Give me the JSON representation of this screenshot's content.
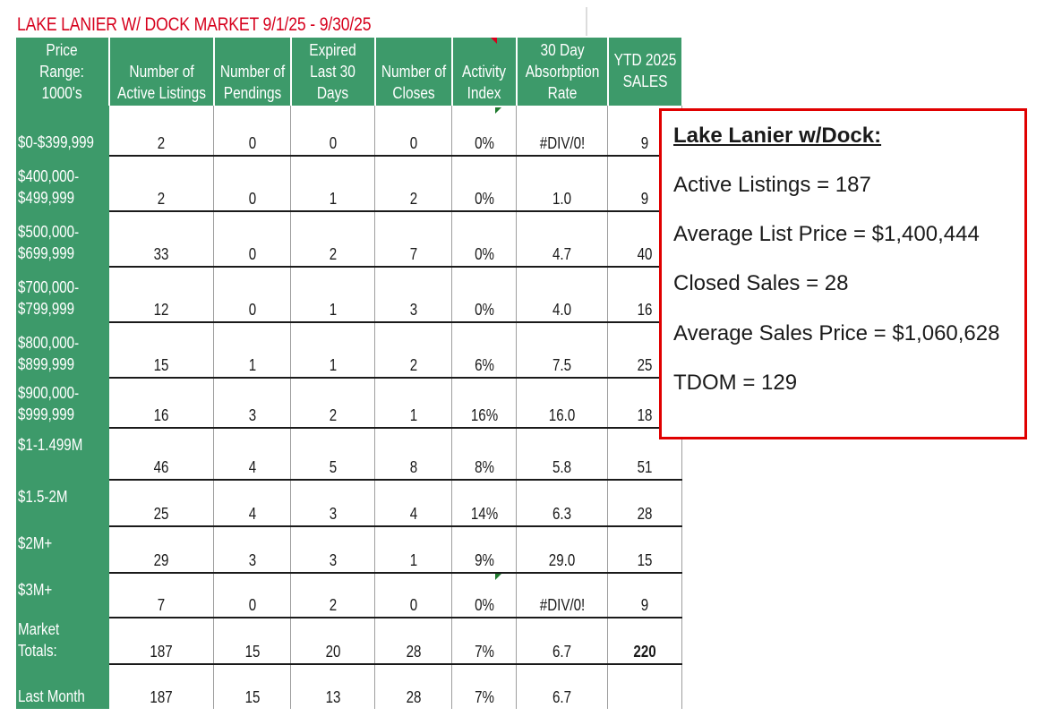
{
  "title": "LAKE LANIER W/ DOCK MARKET 9/1/25 - 9/30/25",
  "headers": [
    [
      "Price",
      "Range:",
      "1000's"
    ],
    [
      "Number of",
      "Active Listings"
    ],
    [
      "Number of",
      "Pendings"
    ],
    [
      "Expired",
      "Last 30",
      "Days"
    ],
    [
      "Number of",
      "Closes"
    ],
    [
      "Activity",
      "Index"
    ],
    [
      "30 Day",
      "Absorbption",
      "Rate"
    ],
    [
      "YTD 2025",
      "SALES"
    ]
  ],
  "rows": [
    {
      "label": [
        "$0-$399,999"
      ],
      "cells": [
        "2",
        "0",
        "0",
        "0",
        "0%",
        "#DIV/0!",
        "9"
      ]
    },
    {
      "label": [
        "$400,000-",
        "$499,999"
      ],
      "cells": [
        "2",
        "0",
        "1",
        "2",
        "0%",
        "1.0",
        "9"
      ]
    },
    {
      "label": [
        "$500,000-",
        "$699,999"
      ],
      "cells": [
        "33",
        "0",
        "2",
        "7",
        "0%",
        "4.7",
        "40"
      ]
    },
    {
      "label": [
        "$700,000-",
        "$799,999"
      ],
      "cells": [
        "12",
        "0",
        "1",
        "3",
        "0%",
        "4.0",
        "16"
      ]
    },
    {
      "label": [
        "$800,000-",
        "$899,999"
      ],
      "cells": [
        "15",
        "1",
        "1",
        "2",
        "6%",
        "7.5",
        "25"
      ]
    },
    {
      "label": [
        "$900,000-",
        "$999,999"
      ],
      "cells": [
        "16",
        "3",
        "2",
        "1",
        "16%",
        "16.0",
        "18"
      ]
    },
    {
      "label": [
        "$1-1.499M"
      ],
      "cells": [
        "46",
        "4",
        "5",
        "8",
        "8%",
        "5.8",
        "51"
      ]
    },
    {
      "label": [
        "$1.5-2M"
      ],
      "cells": [
        "25",
        "4",
        "3",
        "4",
        "14%",
        "6.3",
        "28"
      ]
    },
    {
      "label": [
        "$2M+"
      ],
      "cells": [
        "29",
        "3",
        "3",
        "1",
        "9%",
        "29.0",
        "15"
      ]
    },
    {
      "label": [
        "$3M+"
      ],
      "cells": [
        "7",
        "0",
        "2",
        "0",
        "0%",
        "#DIV/0!",
        "9"
      ]
    },
    {
      "label": [
        "Market",
        "Totals:"
      ],
      "cells": [
        "187",
        "15",
        "20",
        "28",
        "7%",
        "6.7",
        "220"
      ]
    },
    {
      "label": [
        "Last Month"
      ],
      "cells": [
        "187",
        "15",
        "13",
        "28",
        "7%",
        "6.7",
        ""
      ]
    }
  ],
  "summary": {
    "heading": "Lake Lanier w/Dock:",
    "lines": [
      "Active Listings = 187",
      "Average List Price = $1,400,444",
      "Closed Sales = 28",
      "Average Sales Price = $1,060,628",
      "TDOM = 129"
    ]
  }
}
